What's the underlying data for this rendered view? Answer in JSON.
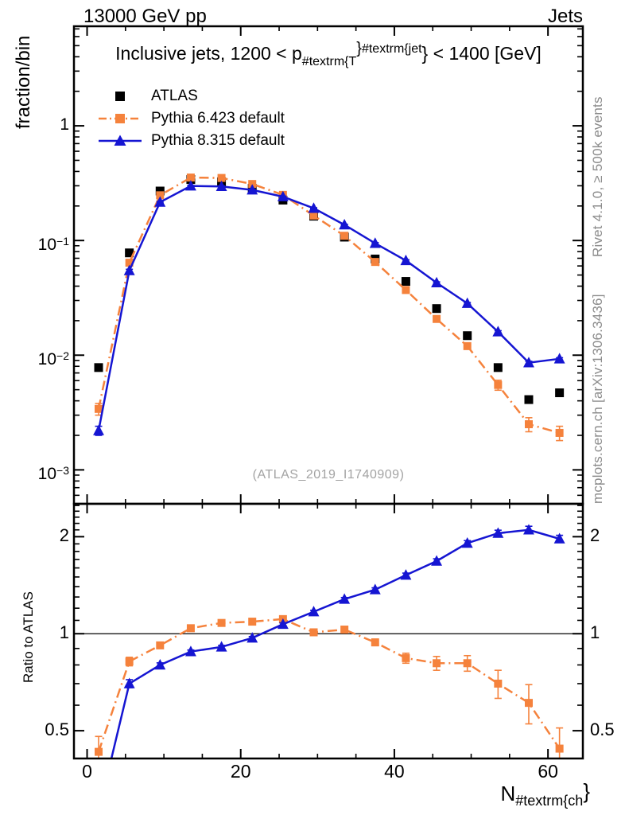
{
  "header": {
    "left": "13000 GeV pp",
    "right": "Jets"
  },
  "plot_title": {
    "pre": "Inclusive jets, 1200 < p",
    "sub": "#textrm{T",
    "brace1": "}",
    "sup": "#textrm{jet",
    "brace2": "}",
    "post": " < 1400 [GeV]"
  },
  "legend": {
    "entries": [
      {
        "label": "ATLAS",
        "color": "#000000",
        "marker": "square",
        "line": "none"
      },
      {
        "label": "Pythia 6.423 default",
        "color": "#f5823c",
        "marker": "square",
        "line": "dashdot"
      },
      {
        "label": "Pythia 8.315 default",
        "color": "#1515d2",
        "marker": "triangle",
        "line": "solid"
      }
    ]
  },
  "watermark": "(ATLAS_2019_I1740909)",
  "side_notes": {
    "top": "Rivet 4.1.0, ≥ 500k events",
    "bottom": "mcplots.cern.ch [arXiv:1306.3436]"
  },
  "axes": {
    "main_ylabel": "fraction/bin",
    "ratio_ylabel": "Ratio to ATLAS",
    "xlabel": {
      "base": "N",
      "sub": "#textrm{ch",
      "brace": "}"
    }
  },
  "chart_data": {
    "type": "line",
    "x": [
      1.5,
      5.5,
      9.5,
      13.5,
      17.5,
      21.5,
      25.5,
      29.5,
      33.5,
      37.5,
      41.5,
      45.5,
      49.5,
      53.5,
      57.5,
      61.5
    ],
    "xlim": [
      -1.71,
      64.54
    ],
    "xticks": {
      "major": [
        0,
        20,
        40,
        60
      ],
      "labels": [
        "0",
        "20",
        "40",
        "60"
      ],
      "minor_step": 5
    },
    "main_panel": {
      "yscale": "log",
      "ylim": [
        0.000506,
        7.38
      ],
      "ytick_labels": [
        {
          "value": 1,
          "base": "1",
          "exp": ""
        },
        {
          "value": 0.1,
          "base": "10",
          "exp": "−1"
        },
        {
          "value": 0.01,
          "base": "10",
          "exp": "−2"
        },
        {
          "value": 0.001,
          "base": "10",
          "exp": "−3"
        }
      ],
      "series": [
        {
          "name": "ATLAS",
          "color": "#000000",
          "marker": "square",
          "line": "none",
          "values": [
            0.0078,
            0.078,
            0.27,
            0.34,
            0.325,
            0.285,
            0.225,
            0.163,
            0.107,
            0.069,
            0.044,
            0.0255,
            0.0148,
            0.0078,
            0.0041,
            0.0047
          ],
          "errors": null
        },
        {
          "name": "Pythia 6.423 default",
          "color": "#f5823c",
          "marker": "square",
          "line": "dashdot",
          "values": [
            0.0034,
            0.064,
            0.248,
            0.354,
            0.351,
            0.311,
            0.25,
            0.165,
            0.11,
            0.065,
            0.037,
            0.0207,
            0.012,
            0.0055,
            0.0025,
            0.0021
          ],
          "errors": [
            0.0004,
            0.002,
            0.004,
            0.004,
            0.004,
            0.004,
            0.003,
            0.002,
            0.0016,
            0.0015,
            0.0013,
            0.001,
            0.0007,
            0.00055,
            0.00035,
            0.0003
          ]
        },
        {
          "name": "Pythia 8.315 default",
          "color": "#1515d2",
          "marker": "triangle",
          "line": "solid",
          "values": [
            0.0022,
            0.0546,
            0.216,
            0.299,
            0.296,
            0.276,
            0.241,
            0.191,
            0.137,
            0.0945,
            0.0669,
            0.0428,
            0.0283,
            0.016,
            0.0086,
            0.0093
          ],
          "errors": [
            0.0002,
            0.0015,
            0.003,
            0.003,
            0.003,
            0.003,
            0.0025,
            0.002,
            0.0016,
            0.0014,
            0.0011,
            0.0008,
            0.0005,
            0.00035,
            0.00025,
            0.0002
          ]
        }
      ]
    },
    "ratio_panel": {
      "yscale": "log",
      "ylim": [
        0.41,
        2.53
      ],
      "reference_line": 1,
      "ytick_labels": [
        {
          "value": 2,
          "label": "2"
        },
        {
          "value": 1,
          "label": "1"
        },
        {
          "value": 0.5,
          "label": "0.5"
        }
      ],
      "series": [
        {
          "name": "Pythia 6.423 default",
          "color": "#f5823c",
          "marker": "square",
          "line": "dashdot",
          "values": [
            0.43,
            0.82,
            0.92,
            1.04,
            1.08,
            1.09,
            1.11,
            1.01,
            1.03,
            0.94,
            0.84,
            0.81,
            0.81,
            0.7,
            0.61,
            0.44
          ],
          "errors": [
            0.05,
            0.025,
            0.015,
            0.012,
            0.012,
            0.012,
            0.013,
            0.013,
            0.016,
            0.022,
            0.03,
            0.04,
            0.045,
            0.07,
            0.085,
            0.07
          ]
        },
        {
          "name": "Pythia 8.315 default",
          "color": "#1515d2",
          "marker": "triangle",
          "line": "solid",
          "values": [
            0.28,
            0.7,
            0.8,
            0.88,
            0.91,
            0.97,
            1.07,
            1.17,
            1.28,
            1.37,
            1.52,
            1.68,
            1.91,
            2.05,
            2.1,
            1.97
          ],
          "errors": [
            0.03,
            0.02,
            0.012,
            0.01,
            0.01,
            0.01,
            0.01,
            0.012,
            0.015,
            0.018,
            0.022,
            0.028,
            0.035,
            0.045,
            0.055,
            0.05
          ]
        }
      ]
    }
  }
}
